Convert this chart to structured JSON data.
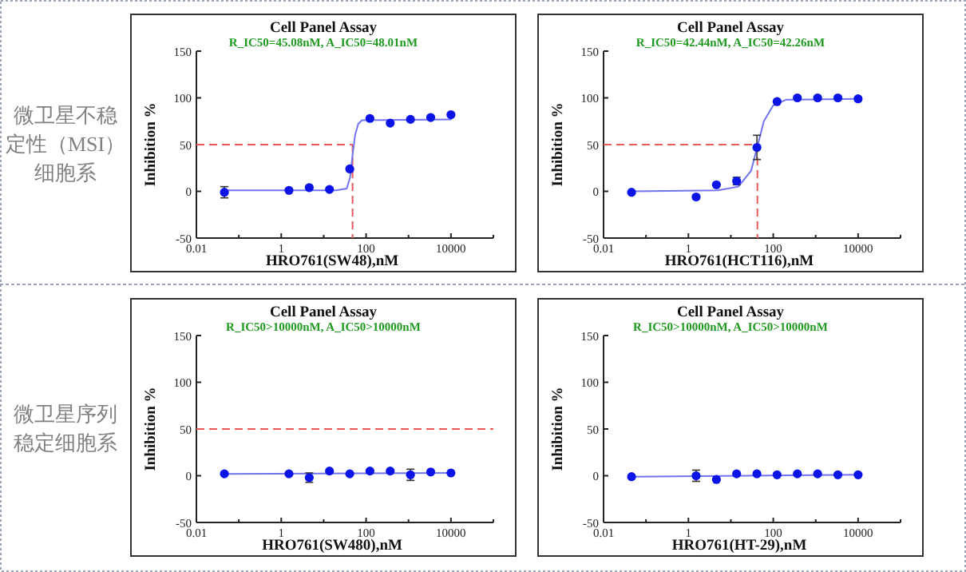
{
  "chart_data": [
    {
      "type": "scatter",
      "title": "Cell Panel Assay",
      "subtitle": "R_IC50=45.08nM, A_IC50=48.01nM",
      "xlabel": "HRO761(SW48),nM",
      "ylabel": "Inhibition %",
      "annotations": [
        "微卫星不稳定性（MSI）细胞系"
      ],
      "log": "x",
      "x": [
        0.0457,
        1.52,
        4.57,
        13.7,
        41.2,
        123,
        370,
        1111,
        3333,
        10000
      ],
      "series": [
        {
          "marker": "circle",
          "color": "#0a14e6",
          "values": [
            -1,
            1,
            4,
            2,
            24,
            78,
            73,
            77,
            79,
            82
          ],
          "errors": [
            6,
            null,
            null,
            null,
            null,
            null,
            null,
            null,
            null,
            null
          ]
        },
        {
          "type": "line",
          "marker": "none",
          "color": "#6f73f0",
          "x": [
            0.0457,
            20,
            35,
            42,
            48,
            55,
            65,
            80,
            10000
          ],
          "values": [
            1,
            1,
            3,
            15,
            39,
            60,
            72,
            76,
            77
          ]
        }
      ],
      "xlim": [
        0.01,
        100000
      ],
      "ylim": [
        -50,
        150
      ],
      "xticks": [
        {
          "value": 0.01,
          "label": "0.01"
        },
        {
          "value": 0.1,
          "label": null
        },
        {
          "value": 1,
          "label": "1"
        },
        {
          "value": 10,
          "label": null
        },
        {
          "value": 100,
          "label": "100"
        },
        {
          "value": 1000,
          "label": null
        },
        {
          "value": 10000,
          "label": "10000"
        },
        {
          "value": 100000,
          "label": null
        }
      ],
      "yticks": [
        -50,
        0,
        50,
        100,
        150
      ],
      "ref_lines": [
        {
          "axis": "y",
          "value": 50,
          "color": "#e85a5a",
          "line_style": "dashed"
        },
        {
          "axis": "x",
          "value": 48.01,
          "color": "#e85a5a",
          "line_style": "dashed"
        }
      ]
    },
    {
      "type": "scatter",
      "title": "Cell Panel Assay",
      "subtitle": "R_IC50=42.44nM, A_IC50=42.26nM",
      "xlabel": "HRO761(HCT116),nM",
      "ylabel": "Inhibition %",
      "log": "x",
      "x": [
        0.0457,
        1.52,
        4.57,
        13.7,
        41.2,
        123,
        370,
        1111,
        3333,
        10000
      ],
      "series": [
        {
          "marker": "circle",
          "color": "#0a14e6",
          "values": [
            -1,
            -6,
            7,
            11,
            47,
            96,
            100,
            100,
            100,
            99
          ],
          "errors": [
            null,
            null,
            null,
            4,
            13,
            null,
            null,
            null,
            null,
            null
          ]
        },
        {
          "type": "line",
          "marker": "none",
          "color": "#6f73f0",
          "x": [
            0.0457,
            5,
            15,
            30,
            42.26,
            60,
            100,
            200,
            10000
          ],
          "values": [
            0,
            1,
            5,
            22,
            48,
            75,
            92,
            98,
            99
          ]
        }
      ],
      "xlim": [
        0.01,
        100000
      ],
      "ylim": [
        -50,
        150
      ],
      "xticks": [
        {
          "value": 0.01,
          "label": "0.01"
        },
        {
          "value": 0.1,
          "label": null
        },
        {
          "value": 1,
          "label": "1"
        },
        {
          "value": 10,
          "label": null
        },
        {
          "value": 100,
          "label": "100"
        },
        {
          "value": 1000,
          "label": null
        },
        {
          "value": 10000,
          "label": "10000"
        },
        {
          "value": 100000,
          "label": null
        }
      ],
      "yticks": [
        -50,
        0,
        50,
        100,
        150
      ],
      "ref_lines": [
        {
          "axis": "y",
          "value": 50,
          "color": "#e85a5a",
          "line_style": "dashed"
        },
        {
          "axis": "x",
          "value": 42.26,
          "color": "#e85a5a",
          "line_style": "dashed"
        }
      ]
    },
    {
      "type": "scatter",
      "title": "Cell Panel Assay",
      "subtitle": "R_IC50>10000nM, A_IC50>10000nM",
      "xlabel": "HRO761(SW480),nM",
      "ylabel": "Inhibition %",
      "annotations": [
        "微卫星序列稳定细胞系"
      ],
      "log": "x",
      "x": [
        0.0457,
        1.52,
        4.57,
        13.7,
        41.2,
        123,
        370,
        1111,
        3333,
        10000
      ],
      "series": [
        {
          "marker": "circle",
          "color": "#0a14e6",
          "values": [
            2,
            2,
            -2,
            5,
            2,
            5,
            5,
            1,
            4,
            3
          ],
          "errors": [
            null,
            null,
            5,
            null,
            null,
            null,
            null,
            6,
            null,
            null
          ]
        },
        {
          "type": "line",
          "marker": "none",
          "color": "#6f73f0",
          "x": [
            0.0457,
            10000
          ],
          "values": [
            2,
            3
          ]
        }
      ],
      "xlim": [
        0.01,
        100000
      ],
      "ylim": [
        -50,
        150
      ],
      "xticks": [
        {
          "value": 0.01,
          "label": "0.01"
        },
        {
          "value": 0.1,
          "label": null
        },
        {
          "value": 1,
          "label": "1"
        },
        {
          "value": 10,
          "label": null
        },
        {
          "value": 100,
          "label": "100"
        },
        {
          "value": 1000,
          "label": null
        },
        {
          "value": 10000,
          "label": "10000"
        },
        {
          "value": 100000,
          "label": null
        }
      ],
      "yticks": [
        -50,
        0,
        50,
        100,
        150
      ],
      "ref_lines": [
        {
          "axis": "y",
          "value": 50,
          "color": "#e85a5a",
          "line_style": "dashed"
        }
      ]
    },
    {
      "type": "scatter",
      "title": "Cell Panel Assay",
      "subtitle": "R_IC50>10000nM, A_IC50>10000nM",
      "xlabel": "HRO761(HT-29),nM",
      "ylabel": "Inhibition %",
      "log": "x",
      "x": [
        0.0457,
        1.52,
        4.57,
        13.7,
        41.2,
        123,
        370,
        1111,
        3333,
        10000
      ],
      "series": [
        {
          "marker": "circle",
          "color": "#0a14e6",
          "values": [
            -1,
            0,
            -4,
            2,
            2,
            1,
            2,
            2,
            1,
            1
          ],
          "errors": [
            null,
            6,
            null,
            null,
            null,
            null,
            null,
            null,
            null,
            null
          ]
        },
        {
          "type": "line",
          "marker": "none",
          "color": "#6f73f0",
          "x": [
            0.0457,
            10000
          ],
          "values": [
            -1,
            1
          ]
        }
      ],
      "xlim": [
        0.01,
        100000
      ],
      "ylim": [
        -50,
        150
      ],
      "xticks": [
        {
          "value": 0.01,
          "label": "0.01"
        },
        {
          "value": 0.1,
          "label": null
        },
        {
          "value": 1,
          "label": "1"
        },
        {
          "value": 10,
          "label": null
        },
        {
          "value": 100,
          "label": "100"
        },
        {
          "value": 1000,
          "label": null
        },
        {
          "value": 10000,
          "label": "10000"
        },
        {
          "value": 100000,
          "label": null
        }
      ],
      "yticks": [
        -50,
        0,
        50,
        100,
        150
      ]
    }
  ]
}
